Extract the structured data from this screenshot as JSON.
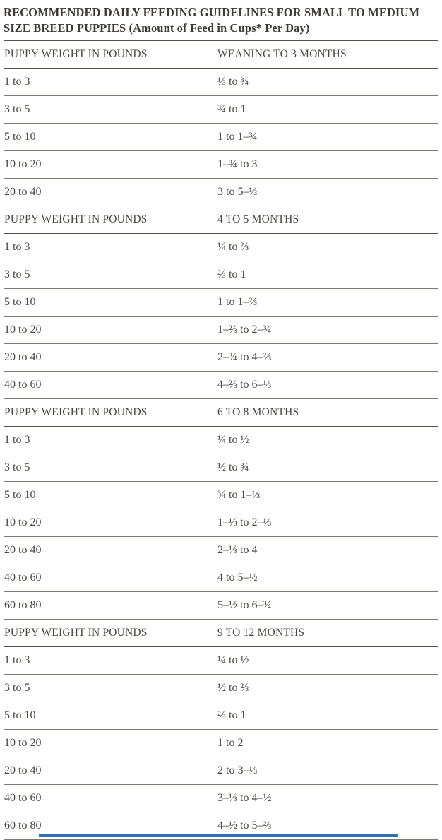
{
  "title": "RECOMMENDED DAILY FEEDING GUIDELINES FOR SMALL TO MEDIUM SIZE BREED PUPPIES (Amount of Feed in Cups* Per Day)",
  "colors": {
    "text": "#4b473f",
    "title_text": "#3f3b34",
    "divider": "#7d7a72",
    "heavy_divider": "#55514a",
    "accent_bar": "#2e6fbe",
    "background": "#ffffff"
  },
  "table": {
    "sections": [
      {
        "col1_header": "PUPPY WEIGHT IN POUNDS",
        "col2_header": "WEANING TO 3 MONTHS",
        "rows": [
          [
            "1 to 3",
            "⅓ to ¾"
          ],
          [
            "3 to 5",
            "¾ to 1"
          ],
          [
            "5 to 10",
            "1 to 1–¾"
          ],
          [
            "10 to 20",
            "1–¾ to 3"
          ],
          [
            "20 to 40",
            "3 to 5–⅓"
          ]
        ]
      },
      {
        "col1_header": "PUPPY WEIGHT IN POUNDS",
        "col2_header": "4 TO 5 MONTHS",
        "rows": [
          [
            "1 to 3",
            "¼ to ⅔"
          ],
          [
            "3 to 5",
            "⅔ to 1"
          ],
          [
            "5 to 10",
            "1 to 1–⅔"
          ],
          [
            "10 to 20",
            "1–⅔ to 2–¾"
          ],
          [
            "20 to 40",
            "2–¾ to 4–⅔"
          ],
          [
            "40 to 60",
            "4–⅔ to 6–⅓"
          ]
        ]
      },
      {
        "col1_header": "PUPPY WEIGHT IN POUNDS",
        "col2_header": "6 TO 8 MONTHS",
        "rows": [
          [
            "1 to 3",
            "¼ to ½"
          ],
          [
            "3 to 5",
            "½ to ¾"
          ],
          [
            "5 to 10",
            "¾ to 1–⅓"
          ],
          [
            "10 to 20",
            "1–⅓ to 2–⅓"
          ],
          [
            "20 to 40",
            "2–⅓ to 4"
          ],
          [
            "40 to 60",
            "4 to 5–½"
          ],
          [
            "60 to 80",
            "5–½ to 6–¾"
          ]
        ]
      },
      {
        "col1_header": "PUPPY WEIGHT IN POUNDS",
        "col2_header": "9 TO 12 MONTHS",
        "rows": [
          [
            "1 to 3",
            "¼ to ½"
          ],
          [
            "3 to 5",
            "½ to ⅔"
          ],
          [
            "5 to 10",
            "⅔ to 1"
          ],
          [
            "10 to 20",
            "1 to 2"
          ],
          [
            "20 to 40",
            "2 to 3–⅓"
          ],
          [
            "40 to 60",
            "3–⅓ to 4–½"
          ],
          [
            "60 to 80",
            "4–½ to 5–⅔"
          ]
        ]
      }
    ]
  }
}
